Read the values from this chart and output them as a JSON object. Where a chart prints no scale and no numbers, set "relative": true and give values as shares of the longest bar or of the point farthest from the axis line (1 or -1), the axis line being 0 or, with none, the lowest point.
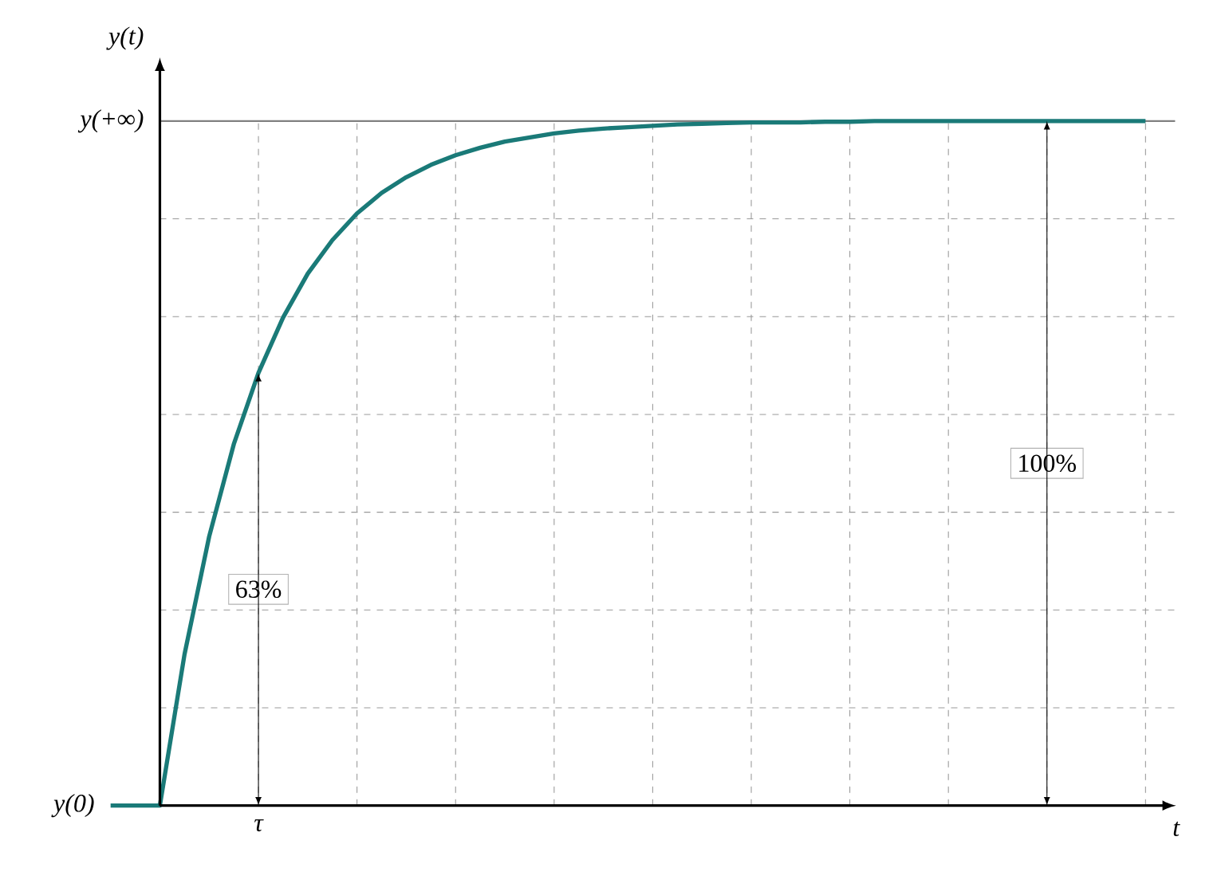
{
  "chart_data": {
    "type": "line",
    "xlabel": "t",
    "ylabel": "y(t)",
    "relative": true,
    "categories": [
      null,
      null,
      null,
      null,
      null,
      null,
      null,
      null,
      null,
      null,
      null,
      null,
      null,
      null,
      null,
      null,
      null,
      null,
      null,
      null,
      null,
      null,
      null,
      null,
      null,
      null,
      null,
      null,
      null,
      null,
      null,
      null,
      null,
      null,
      null,
      null,
      null,
      null,
      null,
      null,
      null,
      null,
      null
    ],
    "series": [
      {
        "color": "#1a7a78",
        "values": [
          0,
          0,
          0,
          0.221,
          0.393,
          0.528,
          0.632,
          0.713,
          0.777,
          0.826,
          0.865,
          0.895,
          0.918,
          0.936,
          0.95,
          0.961,
          0.97,
          0.976,
          0.982,
          0.986,
          0.989,
          0.991,
          0.993,
          0.995,
          0.996,
          0.997,
          0.998,
          0.998,
          0.998,
          0.999,
          0.999,
          1,
          1,
          1,
          1,
          1,
          1,
          1,
          1,
          1,
          1,
          1,
          1
        ]
      }
    ],
    "grid": true,
    "ref_lines": [
      {
        "axis": "y",
        "value": 1,
        "color": "#808080"
      }
    ],
    "annotations": [
      "y(0)",
      "y(+∞)",
      "τ",
      "63%",
      "100%"
    ]
  }
}
